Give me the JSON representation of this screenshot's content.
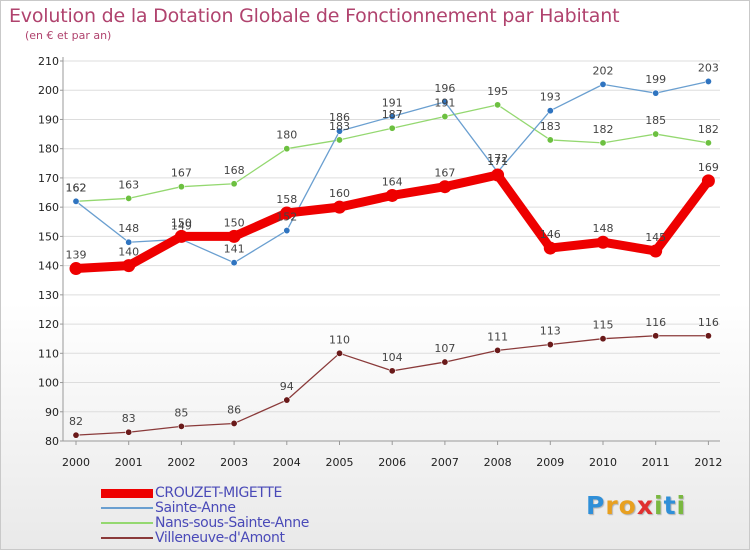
{
  "colors": {
    "title": "#b0436e",
    "axis": "#999999",
    "grid": "#dddddd",
    "tick_text": "#222222",
    "label_text": "#444444",
    "legend_text": "#4a4ab8"
  },
  "logo": {
    "text": "Proxiti",
    "letters": [
      {
        "char": "P",
        "color": "#2f8fd8"
      },
      {
        "char": "r",
        "color": "#e8a020"
      },
      {
        "char": "o",
        "color": "#e8a020"
      },
      {
        "char": "x",
        "color": "#e03030"
      },
      {
        "char": "i",
        "color": "#7ab840"
      },
      {
        "char": "t",
        "color": "#2f8fd8"
      },
      {
        "char": "i",
        "color": "#7ab840"
      }
    ]
  },
  "chart_data": {
    "type": "line",
    "title": "Evolution de la Dotation Globale de Fonctionnement par Habitant",
    "subtitle": "(en € et par an)",
    "xlabel": "",
    "ylabel": "",
    "x": [
      "2000",
      "2001",
      "2002",
      "2003",
      "2004",
      "2005",
      "2006",
      "2007",
      "2008",
      "2009",
      "2010",
      "2011",
      "2012"
    ],
    "ylim": [
      80,
      210
    ],
    "yticks": [
      80,
      90,
      100,
      110,
      120,
      130,
      140,
      150,
      160,
      170,
      180,
      190,
      200,
      210
    ],
    "grid": "horizontal",
    "legend_position": "bottom-left",
    "series": [
      {
        "name": "CROUZET-MIGETTE",
        "color": "#ee0000",
        "stroke": "thick",
        "values": [
          139,
          140,
          150,
          150,
          158,
          160,
          164,
          167,
          171,
          146,
          148,
          145,
          169
        ]
      },
      {
        "name": "Sainte-Anne",
        "color": "#6a9fd0",
        "stroke": "thin",
        "point_color": "#2f74c0",
        "values": [
          162,
          148,
          149,
          141,
          152,
          186,
          191,
          196,
          172,
          193,
          202,
          199,
          203
        ]
      },
      {
        "name": "Nans-sous-Sainte-Anne",
        "color": "#94d870",
        "stroke": "thin",
        "point_color": "#6cc040",
        "values": [
          162,
          163,
          167,
          168,
          180,
          183,
          187,
          191,
          195,
          183,
          182,
          185,
          182
        ]
      },
      {
        "name": "Villeneuve-d'Amont",
        "color": "#8a3a3a",
        "stroke": "thin",
        "point_color": "#6a1a1a",
        "values": [
          82,
          83,
          85,
          86,
          94,
          110,
          104,
          107,
          111,
          113,
          115,
          116,
          116
        ]
      }
    ]
  }
}
